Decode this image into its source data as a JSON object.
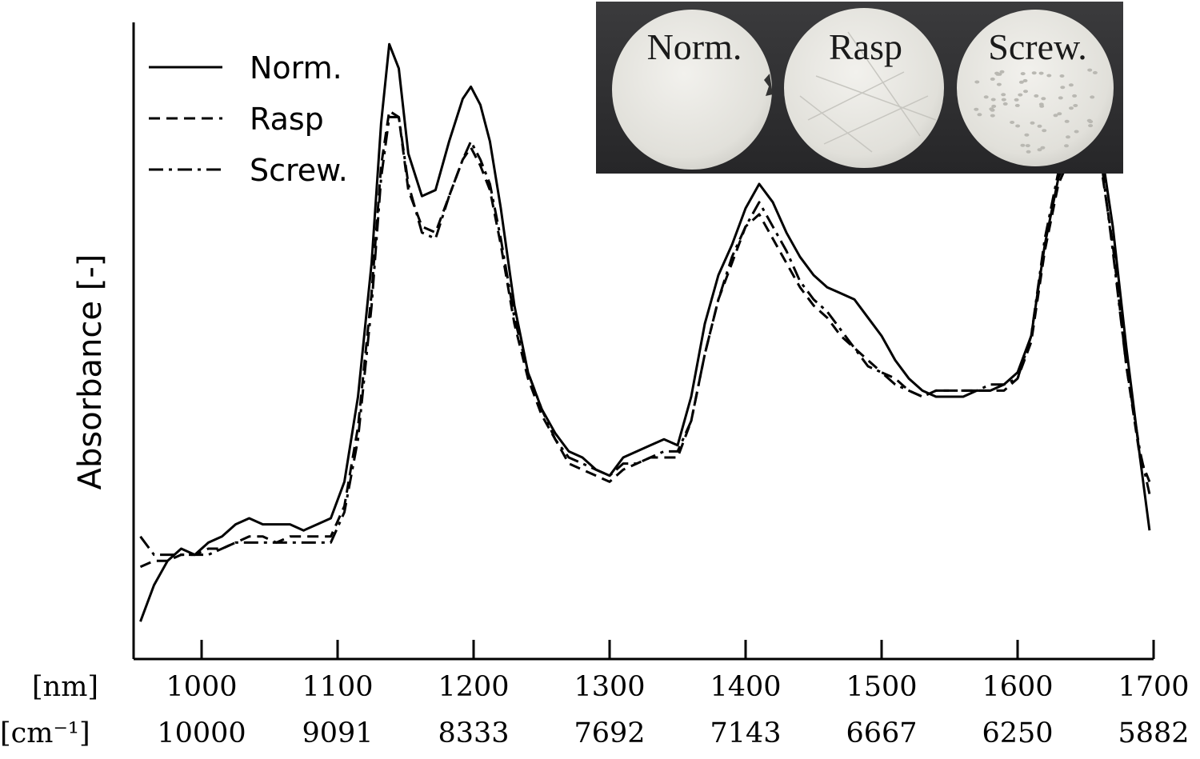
{
  "chart_data": {
    "type": "line",
    "ylabel": "Absorbance  [-]",
    "x_unit_labels": [
      "[nm]",
      "[cm⁻¹]"
    ],
    "xlim": [
      950,
      1700
    ],
    "ylim": [
      0,
      1
    ],
    "x_ticks_nm": [
      "1000",
      "1100",
      "1200",
      "1300",
      "1400",
      "1500",
      "1600",
      "1700"
    ],
    "x_ticks_cm": [
      "10000",
      "9091",
      "8333",
      "7692",
      "7143",
      "6667",
      "6250",
      "5882"
    ],
    "legend_position": "top-left",
    "inset_labels": [
      "Norm.",
      "Rasp",
      "Screw."
    ],
    "series": [
      {
        "name": "Norm.",
        "style": "solid",
        "points": [
          [
            955,
            0.03
          ],
          [
            965,
            0.09
          ],
          [
            975,
            0.13
          ],
          [
            985,
            0.15
          ],
          [
            995,
            0.14
          ],
          [
            1005,
            0.16
          ],
          [
            1015,
            0.17
          ],
          [
            1025,
            0.19
          ],
          [
            1035,
            0.2
          ],
          [
            1045,
            0.19
          ],
          [
            1055,
            0.19
          ],
          [
            1065,
            0.19
          ],
          [
            1075,
            0.18
          ],
          [
            1085,
            0.19
          ],
          [
            1095,
            0.2
          ],
          [
            1105,
            0.26
          ],
          [
            1115,
            0.4
          ],
          [
            1125,
            0.62
          ],
          [
            1132,
            0.85
          ],
          [
            1138,
            0.98
          ],
          [
            1145,
            0.94
          ],
          [
            1152,
            0.8
          ],
          [
            1162,
            0.73
          ],
          [
            1172,
            0.74
          ],
          [
            1182,
            0.82
          ],
          [
            1192,
            0.89
          ],
          [
            1198,
            0.91
          ],
          [
            1205,
            0.88
          ],
          [
            1212,
            0.82
          ],
          [
            1220,
            0.71
          ],
          [
            1230,
            0.55
          ],
          [
            1240,
            0.44
          ],
          [
            1250,
            0.38
          ],
          [
            1260,
            0.34
          ],
          [
            1270,
            0.31
          ],
          [
            1280,
            0.3
          ],
          [
            1290,
            0.28
          ],
          [
            1300,
            0.27
          ],
          [
            1310,
            0.3
          ],
          [
            1320,
            0.31
          ],
          [
            1330,
            0.32
          ],
          [
            1340,
            0.33
          ],
          [
            1350,
            0.32
          ],
          [
            1360,
            0.4
          ],
          [
            1370,
            0.52
          ],
          [
            1380,
            0.6
          ],
          [
            1390,
            0.65
          ],
          [
            1400,
            0.71
          ],
          [
            1410,
            0.75
          ],
          [
            1420,
            0.72
          ],
          [
            1430,
            0.67
          ],
          [
            1440,
            0.63
          ],
          [
            1450,
            0.6
          ],
          [
            1460,
            0.58
          ],
          [
            1470,
            0.57
          ],
          [
            1480,
            0.56
          ],
          [
            1490,
            0.53
          ],
          [
            1500,
            0.5
          ],
          [
            1510,
            0.46
          ],
          [
            1520,
            0.43
          ],
          [
            1530,
            0.41
          ],
          [
            1540,
            0.4
          ],
          [
            1550,
            0.4
          ],
          [
            1560,
            0.4
          ],
          [
            1570,
            0.41
          ],
          [
            1580,
            0.41
          ],
          [
            1590,
            0.42
          ],
          [
            1600,
            0.44
          ],
          [
            1610,
            0.5
          ],
          [
            1620,
            0.65
          ],
          [
            1630,
            0.76
          ],
          [
            1640,
            0.81
          ],
          [
            1648,
            0.79
          ],
          [
            1655,
            0.84
          ],
          [
            1662,
            0.8
          ],
          [
            1670,
            0.68
          ],
          [
            1680,
            0.48
          ],
          [
            1690,
            0.3
          ],
          [
            1697,
            0.18
          ]
        ]
      },
      {
        "name": "Rasp",
        "style": "dashed",
        "points": [
          [
            955,
            0.12
          ],
          [
            965,
            0.13
          ],
          [
            975,
            0.13
          ],
          [
            985,
            0.14
          ],
          [
            995,
            0.14
          ],
          [
            1005,
            0.15
          ],
          [
            1015,
            0.15
          ],
          [
            1025,
            0.16
          ],
          [
            1035,
            0.17
          ],
          [
            1045,
            0.17
          ],
          [
            1055,
            0.16
          ],
          [
            1065,
            0.17
          ],
          [
            1075,
            0.17
          ],
          [
            1085,
            0.17
          ],
          [
            1095,
            0.17
          ],
          [
            1105,
            0.22
          ],
          [
            1115,
            0.35
          ],
          [
            1125,
            0.57
          ],
          [
            1132,
            0.78
          ],
          [
            1138,
            0.87
          ],
          [
            1145,
            0.86
          ],
          [
            1152,
            0.74
          ],
          [
            1162,
            0.68
          ],
          [
            1172,
            0.67
          ],
          [
            1182,
            0.73
          ],
          [
            1192,
            0.79
          ],
          [
            1198,
            0.81
          ],
          [
            1205,
            0.78
          ],
          [
            1212,
            0.74
          ],
          [
            1220,
            0.65
          ],
          [
            1230,
            0.52
          ],
          [
            1240,
            0.43
          ],
          [
            1250,
            0.37
          ],
          [
            1260,
            0.33
          ],
          [
            1270,
            0.29
          ],
          [
            1280,
            0.28
          ],
          [
            1290,
            0.27
          ],
          [
            1300,
            0.26
          ],
          [
            1310,
            0.28
          ],
          [
            1320,
            0.29
          ],
          [
            1330,
            0.3
          ],
          [
            1340,
            0.3
          ],
          [
            1350,
            0.3
          ],
          [
            1360,
            0.36
          ],
          [
            1370,
            0.47
          ],
          [
            1380,
            0.56
          ],
          [
            1390,
            0.62
          ],
          [
            1400,
            0.68
          ],
          [
            1410,
            0.7
          ],
          [
            1420,
            0.66
          ],
          [
            1430,
            0.62
          ],
          [
            1440,
            0.58
          ],
          [
            1450,
            0.55
          ],
          [
            1460,
            0.53
          ],
          [
            1470,
            0.5
          ],
          [
            1480,
            0.48
          ],
          [
            1490,
            0.46
          ],
          [
            1500,
            0.44
          ],
          [
            1510,
            0.43
          ],
          [
            1520,
            0.41
          ],
          [
            1530,
            0.4
          ],
          [
            1540,
            0.41
          ],
          [
            1550,
            0.41
          ],
          [
            1560,
            0.41
          ],
          [
            1570,
            0.41
          ],
          [
            1580,
            0.41
          ],
          [
            1590,
            0.41
          ],
          [
            1600,
            0.43
          ],
          [
            1610,
            0.49
          ],
          [
            1620,
            0.64
          ],
          [
            1630,
            0.75
          ],
          [
            1640,
            0.8
          ],
          [
            1648,
            0.79
          ],
          [
            1655,
            0.78
          ],
          [
            1662,
            0.77
          ],
          [
            1670,
            0.65
          ],
          [
            1680,
            0.45
          ],
          [
            1690,
            0.3
          ],
          [
            1697,
            0.26
          ]
        ]
      },
      {
        "name": "Screw.",
        "style": "dash-dot",
        "points": [
          [
            955,
            0.17
          ],
          [
            965,
            0.14
          ],
          [
            975,
            0.14
          ],
          [
            985,
            0.14
          ],
          [
            995,
            0.14
          ],
          [
            1005,
            0.14
          ],
          [
            1015,
            0.15
          ],
          [
            1025,
            0.16
          ],
          [
            1035,
            0.16
          ],
          [
            1045,
            0.16
          ],
          [
            1055,
            0.16
          ],
          [
            1065,
            0.16
          ],
          [
            1075,
            0.16
          ],
          [
            1085,
            0.16
          ],
          [
            1095,
            0.16
          ],
          [
            1105,
            0.21
          ],
          [
            1115,
            0.33
          ],
          [
            1125,
            0.55
          ],
          [
            1132,
            0.76
          ],
          [
            1138,
            0.86
          ],
          [
            1145,
            0.86
          ],
          [
            1152,
            0.75
          ],
          [
            1162,
            0.67
          ],
          [
            1172,
            0.66
          ],
          [
            1182,
            0.73
          ],
          [
            1192,
            0.79
          ],
          [
            1198,
            0.82
          ],
          [
            1205,
            0.79
          ],
          [
            1212,
            0.75
          ],
          [
            1220,
            0.66
          ],
          [
            1230,
            0.53
          ],
          [
            1240,
            0.44
          ],
          [
            1250,
            0.38
          ],
          [
            1260,
            0.33
          ],
          [
            1270,
            0.3
          ],
          [
            1280,
            0.29
          ],
          [
            1290,
            0.28
          ],
          [
            1300,
            0.27
          ],
          [
            1310,
            0.29
          ],
          [
            1320,
            0.29
          ],
          [
            1330,
            0.3
          ],
          [
            1340,
            0.31
          ],
          [
            1350,
            0.31
          ],
          [
            1360,
            0.36
          ],
          [
            1370,
            0.47
          ],
          [
            1380,
            0.56
          ],
          [
            1390,
            0.63
          ],
          [
            1400,
            0.68
          ],
          [
            1410,
            0.72
          ],
          [
            1420,
            0.68
          ],
          [
            1430,
            0.64
          ],
          [
            1440,
            0.59
          ],
          [
            1450,
            0.56
          ],
          [
            1460,
            0.54
          ],
          [
            1470,
            0.51
          ],
          [
            1480,
            0.48
          ],
          [
            1490,
            0.45
          ],
          [
            1500,
            0.44
          ],
          [
            1510,
            0.42
          ],
          [
            1520,
            0.41
          ],
          [
            1530,
            0.4
          ],
          [
            1540,
            0.41
          ],
          [
            1550,
            0.41
          ],
          [
            1560,
            0.41
          ],
          [
            1570,
            0.41
          ],
          [
            1580,
            0.42
          ],
          [
            1590,
            0.42
          ],
          [
            1600,
            0.43
          ],
          [
            1610,
            0.5
          ],
          [
            1620,
            0.66
          ],
          [
            1630,
            0.77
          ],
          [
            1640,
            0.82
          ],
          [
            1648,
            0.8
          ],
          [
            1655,
            0.8
          ],
          [
            1662,
            0.78
          ],
          [
            1670,
            0.64
          ],
          [
            1680,
            0.45
          ],
          [
            1690,
            0.31
          ],
          [
            1697,
            0.24
          ]
        ]
      }
    ]
  }
}
